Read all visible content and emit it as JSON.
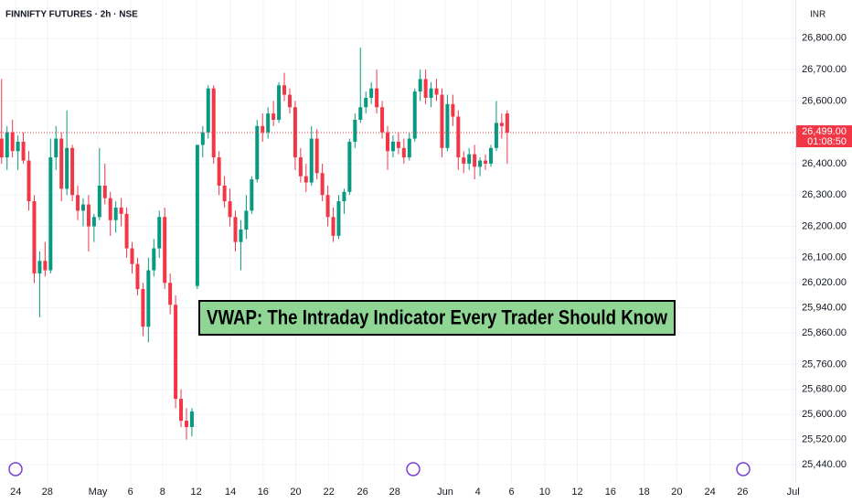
{
  "chart_data": {
    "type": "candlestick",
    "title": "FINNIFTY FUTURES · 2h · NSE",
    "currency": "INR",
    "annotation": "VWAP: The Intraday Indicator Every Trader Should Know",
    "up_color": "#089981",
    "down_color": "#f23645",
    "grid": true,
    "last_price": {
      "value": 26499,
      "label": "26,499.00"
    },
    "countdown": "01:08:50",
    "ylim": [
      25382,
      26922
    ],
    "yticks": [
      {
        "value": 26800,
        "label": "26,800.00"
      },
      {
        "value": 26700,
        "label": "26,700.00"
      },
      {
        "value": 26600,
        "label": "26,600.00"
      },
      {
        "value": 26400,
        "label": "26,400.00"
      },
      {
        "value": 26300,
        "label": "26,300.00"
      },
      {
        "value": 26200,
        "label": "26,200.00"
      },
      {
        "value": 26100,
        "label": "26,100.00"
      },
      {
        "value": 26020,
        "label": "26,020.00"
      },
      {
        "value": 25940,
        "label": "25,940.00"
      },
      {
        "value": 25860,
        "label": "25,860.00"
      },
      {
        "value": 25760,
        "label": "25,760.00"
      },
      {
        "value": 25680,
        "label": "25,680.00"
      },
      {
        "value": 25600,
        "label": "25,600.00"
      },
      {
        "value": 25520,
        "label": "25,520.00"
      },
      {
        "value": 25440,
        "label": "25,440.00"
      }
    ],
    "xlim": [
      -0.3,
      146
    ],
    "xticks": [
      {
        "value": 2.6,
        "label": "24"
      },
      {
        "value": 8.4,
        "label": "28"
      },
      {
        "value": 17.7,
        "label": "May"
      },
      {
        "value": 23.7,
        "label": "6"
      },
      {
        "value": 29.6,
        "label": "8"
      },
      {
        "value": 35.8,
        "label": "12"
      },
      {
        "value": 42.1,
        "label": "14"
      },
      {
        "value": 48.1,
        "label": "16"
      },
      {
        "value": 54.1,
        "label": "20"
      },
      {
        "value": 60.2,
        "label": "22"
      },
      {
        "value": 66.4,
        "label": "26"
      },
      {
        "value": 72.3,
        "label": "28"
      },
      {
        "value": 81.6,
        "label": "Jun"
      },
      {
        "value": 87.6,
        "label": "4"
      },
      {
        "value": 93.8,
        "label": "6"
      },
      {
        "value": 99.9,
        "label": "10"
      },
      {
        "value": 105.9,
        "label": "12"
      },
      {
        "value": 112,
        "label": "16"
      },
      {
        "value": 118.2,
        "label": "18"
      },
      {
        "value": 124.2,
        "label": "20"
      },
      {
        "value": 130.3,
        "label": "24"
      },
      {
        "value": 136.3,
        "label": "26"
      },
      {
        "value": 145.6,
        "label": "Jul"
      }
    ],
    "candles": [
      [
        26480,
        26670,
        26400,
        26420
      ],
      [
        26420,
        26520,
        26380,
        26500
      ],
      [
        26500,
        26540,
        26420,
        26440
      ],
      [
        26440,
        26490,
        26380,
        26470
      ],
      [
        26470,
        26500,
        26400,
        26410
      ],
      [
        26410,
        26440,
        26250,
        26280
      ],
      [
        26280,
        26300,
        26020,
        26050
      ],
      [
        26050,
        26120,
        25910,
        26090
      ],
      [
        26090,
        26150,
        26040,
        26060
      ],
      [
        26060,
        26480,
        26050,
        26420
      ],
      [
        26420,
        26520,
        26380,
        26480
      ],
      [
        26480,
        26500,
        26280,
        26320
      ],
      [
        26320,
        26570,
        26300,
        26450
      ],
      [
        26450,
        26460,
        26280,
        26300
      ],
      [
        26300,
        26330,
        26220,
        26250
      ],
      [
        26250,
        26290,
        26200,
        26270
      ],
      [
        26270,
        26300,
        26120,
        26200
      ],
      [
        26200,
        26240,
        26150,
        26230
      ],
      [
        26230,
        26450,
        26220,
        26330
      ],
      [
        26330,
        26400,
        26270,
        26290
      ],
      [
        26290,
        26310,
        26170,
        26220
      ],
      [
        26220,
        26280,
        26180,
        26260
      ],
      [
        26260,
        26290,
        26200,
        26240
      ],
      [
        26240,
        26260,
        26100,
        26130
      ],
      [
        26130,
        26150,
        26050,
        26080
      ],
      [
        26080,
        26100,
        25980,
        26000
      ],
      [
        26000,
        26020,
        25850,
        25880
      ],
      [
        25880,
        26100,
        25830,
        26060
      ],
      [
        26060,
        26160,
        26040,
        26130
      ],
      [
        26130,
        26250,
        26100,
        26230
      ],
      [
        26230,
        26260,
        26000,
        26020
      ],
      [
        26020,
        26050,
        25920,
        25950
      ],
      [
        25950,
        25980,
        25620,
        25650
      ],
      [
        25650,
        25680,
        25560,
        25580
      ],
      [
        25580,
        25620,
        25520,
        25560
      ],
      [
        25560,
        25620,
        25530,
        25610
      ],
      [
        26010,
        26460,
        26000,
        26460
      ],
      [
        26460,
        26520,
        26420,
        26500
      ],
      [
        26500,
        26650,
        26480,
        26640
      ],
      [
        26640,
        26650,
        26400,
        26420
      ],
      [
        26420,
        26440,
        26300,
        26330
      ],
      [
        26330,
        26360,
        26260,
        26280
      ],
      [
        26280,
        26320,
        26200,
        26230
      ],
      [
        26230,
        26250,
        26120,
        26150
      ],
      [
        26150,
        26220,
        26060,
        26190
      ],
      [
        26190,
        26300,
        26160,
        26250
      ],
      [
        26250,
        26360,
        26240,
        26350
      ],
      [
        26350,
        26540,
        26340,
        26520
      ],
      [
        26520,
        26560,
        26470,
        26500
      ],
      [
        26500,
        26580,
        26480,
        26560
      ],
      [
        26560,
        26600,
        26520,
        26540
      ],
      [
        26540,
        26660,
        26530,
        26650
      ],
      [
        26650,
        26690,
        26600,
        26620
      ],
      [
        26620,
        26640,
        26560,
        26580
      ],
      [
        26580,
        26600,
        26380,
        26420
      ],
      [
        26420,
        26450,
        26340,
        26360
      ],
      [
        26360,
        26400,
        26310,
        26340
      ],
      [
        26340,
        26520,
        26330,
        26480
      ],
      [
        26480,
        26510,
        26350,
        26370
      ],
      [
        26370,
        26400,
        26280,
        26300
      ],
      [
        26300,
        26330,
        26200,
        26230
      ],
      [
        26230,
        26260,
        26150,
        26170
      ],
      [
        26170,
        26300,
        26160,
        26280
      ],
      [
        26280,
        26320,
        26240,
        26310
      ],
      [
        26310,
        26480,
        26300,
        26470
      ],
      [
        26470,
        26560,
        26450,
        26540
      ],
      [
        26540,
        26770,
        26530,
        26580
      ],
      [
        26580,
        26630,
        26560,
        26610
      ],
      [
        26610,
        26660,
        26590,
        26640
      ],
      [
        26640,
        26700,
        26560,
        26580
      ],
      [
        26580,
        26600,
        26480,
        26500
      ],
      [
        26500,
        26520,
        26380,
        26440
      ],
      [
        26440,
        26490,
        26420,
        26470
      ],
      [
        26470,
        26500,
        26430,
        26450
      ],
      [
        26450,
        26480,
        26400,
        26420
      ],
      [
        26420,
        26500,
        26410,
        26480
      ],
      [
        26480,
        26640,
        26470,
        26630
      ],
      [
        26630,
        26700,
        26600,
        26670
      ],
      [
        26670,
        26700,
        26590,
        26610
      ],
      [
        26610,
        26660,
        26580,
        26640
      ],
      [
        26640,
        26670,
        26600,
        26620
      ],
      [
        26620,
        26640,
        26420,
        26450
      ],
      [
        26450,
        26620,
        26440,
        26590
      ],
      [
        26590,
        26620,
        26520,
        26550
      ],
      [
        26550,
        26570,
        26380,
        26420
      ],
      [
        26420,
        26440,
        26370,
        26400
      ],
      [
        26400,
        26450,
        26380,
        26430
      ],
      [
        26430,
        26460,
        26350,
        26390
      ],
      [
        26390,
        26420,
        26360,
        26410
      ],
      [
        26410,
        26430,
        26380,
        26400
      ],
      [
        26400,
        26460,
        26390,
        26450
      ],
      [
        26450,
        26600,
        26440,
        26530
      ],
      [
        26530,
        26560,
        26480,
        26520
      ],
      [
        26560,
        26570,
        26400,
        26499
      ]
    ]
  }
}
